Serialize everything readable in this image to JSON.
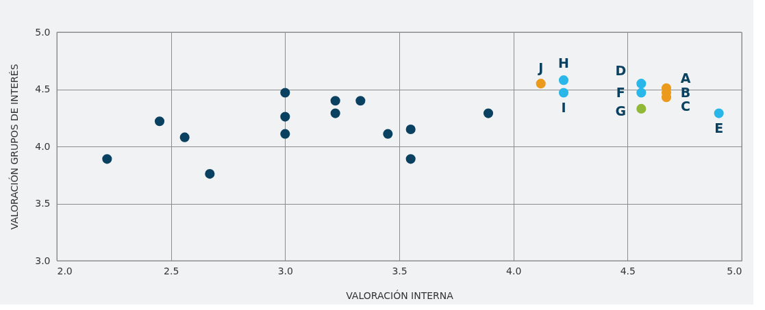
{
  "chart_data": {
    "type": "scatter",
    "xlabel": "VALORACIÓN INTERNA",
    "ylabel": "VALORACIÓN GRUPOS DE INTERÉS",
    "xlim": [
      2.0,
      5.0
    ],
    "xticks": [
      {
        "value": 2.0,
        "label": "2.0"
      },
      {
        "value": 2.5,
        "label": "2.5"
      },
      {
        "value": 3.0,
        "label": "3.0"
      },
      {
        "value": 3.5,
        "label": "3.5"
      },
      {
        "value": 4.0,
        "label": "4.0"
      },
      {
        "value": 4.5,
        "label": "4.5"
      },
      {
        "value": 5.0,
        "label": "5.0"
      }
    ],
    "ylim": [
      3.0,
      5.0
    ],
    "yticks": [
      {
        "value": 3.0,
        "label": "3.0"
      },
      {
        "value": 3.5,
        "label": "3.5"
      },
      {
        "value": 4.0,
        "label": "4.0"
      },
      {
        "value": 4.5,
        "label": "4.5"
      },
      {
        "value": 5.0,
        "label": "5.0"
      }
    ],
    "grid": true,
    "marker": "circle",
    "legend": false,
    "series": [
      {
        "color": "#0b4160",
        "x": [
          2.22,
          2.45,
          2.56,
          2.67,
          3.0,
          3.0,
          3.0,
          3.22,
          3.22,
          3.33,
          3.45,
          3.55,
          3.55,
          3.89
        ],
        "values": [
          3.89,
          4.22,
          4.08,
          3.76,
          4.47,
          4.26,
          4.11,
          4.4,
          4.29,
          4.4,
          4.11,
          4.15,
          3.89,
          4.29
        ]
      },
      {
        "color": "#eb9a1c",
        "x": [
          4.12,
          4.67,
          4.67,
          4.67
        ],
        "values": [
          4.55,
          4.51,
          4.47,
          4.43
        ]
      },
      {
        "color": "#29b6e8",
        "x": [
          4.22,
          4.22,
          4.56,
          4.56,
          4.9
        ],
        "values": [
          4.58,
          4.47,
          4.55,
          4.47,
          4.29
        ]
      },
      {
        "color": "#92b83a",
        "x": [
          4.56
        ],
        "values": [
          4.33
        ]
      }
    ],
    "annotations": [
      {
        "text": "J",
        "x": 4.12,
        "y": 4.55
      },
      {
        "text": "H",
        "x": 4.22,
        "y": 4.58
      },
      {
        "text": "I",
        "x": 4.22,
        "y": 4.47
      },
      {
        "text": "D",
        "x": 4.56,
        "y": 4.55
      },
      {
        "text": "F",
        "x": 4.56,
        "y": 4.47
      },
      {
        "text": "G",
        "x": 4.56,
        "y": 4.33
      },
      {
        "text": "A",
        "x": 4.67,
        "y": 4.51
      },
      {
        "text": "B",
        "x": 4.67,
        "y": 4.47
      },
      {
        "text": "C",
        "x": 4.67,
        "y": 4.43
      },
      {
        "text": "E",
        "x": 4.9,
        "y": 4.29
      }
    ]
  }
}
